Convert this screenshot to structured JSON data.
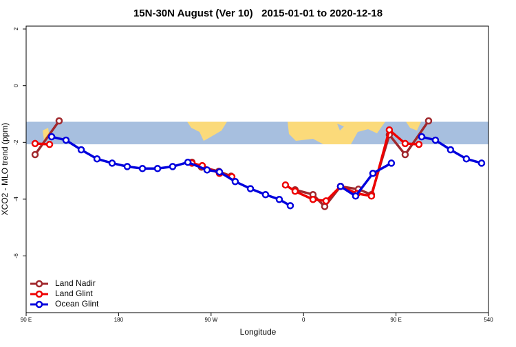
{
  "chart_data": {
    "type": "line",
    "title": "15N-30N August (Ver 10)   2015-01-01 to 2020-12-18",
    "x_label": "Longitude",
    "y_label": "XCO2 - MLO trend (ppm)",
    "xlim": [
      90,
      540
    ],
    "ylim": [
      -8.0,
      2.1
    ],
    "xticks": [
      {
        "value": 90,
        "label": "90 E"
      },
      180,
      {
        "value": 270,
        "label": "90 W"
      },
      {
        "value": 360,
        "label": "0"
      },
      {
        "value": 450,
        "label": "90 E"
      },
      540
    ],
    "yticks": [
      2,
      0,
      -2,
      -4,
      -6
    ],
    "legend": "bottomleft",
    "series": [
      {
        "name": "Land Nadir",
        "color": "#a0282d",
        "x": [
          98.7,
          122.1,
          null,
          251.4,
          260.7,
          277.5,
          289.5,
          null,
          351.8,
          369.2,
          380.6,
          396,
          413.4,
          426.1,
          443.5,
          458.9,
          481.7
        ],
        "values": [
          -2.43,
          -1.24,
          null,
          -2.7,
          -2.87,
          -3.02,
          -3.19,
          null,
          -3.67,
          -3.84,
          -4.26,
          -3.55,
          -3.65,
          -3.84,
          -1.73,
          -2.43,
          -1.24
        ]
      },
      {
        "name": "Land Glint",
        "color": "#ee0000",
        "x": [
          98.7,
          112.8,
          null,
          251.4,
          261.4,
          278.2,
          290.2,
          null,
          342.4,
          351.8,
          369.2,
          381.9,
          396,
          412.1,
          426.1,
          443.5,
          458.9,
          472.3
        ],
        "values": [
          -2.04,
          -2.07,
          null,
          -2.73,
          -2.82,
          -3.09,
          -3.21,
          null,
          -3.5,
          -3.72,
          -4.01,
          -4.06,
          -3.55,
          -3.8,
          -3.89,
          -1.56,
          -2.04,
          -2.07
        ]
      },
      {
        "name": "Ocean Glint",
        "color": "#0000dd",
        "x": [
          114.8,
          128.8,
          143.6,
          159,
          173.7,
          188.4,
          203.2,
          217.9,
          232.6,
          247.4,
          266.1,
          278.2,
          293.5,
          308.3,
          323,
          336.4,
          347.1,
          null,
          396,
          410.7,
          427.5,
          445.5,
          null,
          475,
          488.4,
          503.1,
          518.5,
          533.3
        ],
        "values": [
          -1.8,
          -1.92,
          -2.26,
          -2.58,
          -2.73,
          -2.85,
          -2.92,
          -2.92,
          -2.85,
          -2.7,
          -2.97,
          -3.04,
          -3.38,
          -3.63,
          -3.84,
          -4.01,
          -4.23,
          null,
          -3.55,
          -3.89,
          -3.09,
          -2.73,
          null,
          -1.8,
          -1.92,
          -2.26,
          -2.58,
          -2.73
        ]
      }
    ]
  }
}
